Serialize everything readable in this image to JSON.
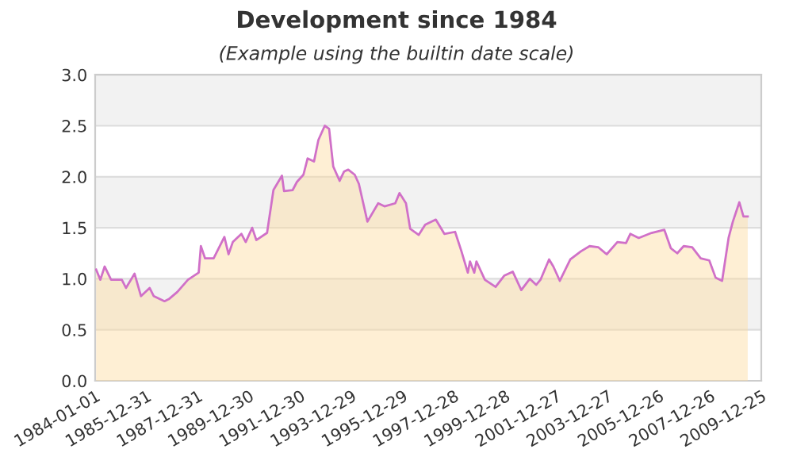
{
  "chart_data": {
    "type": "area",
    "title": "Development since 1984",
    "subtitle": "(Example using the builtin date scale)",
    "x": [
      "1984-01",
      "1984-03",
      "1984-05",
      "1984-08",
      "1985-01",
      "1985-03",
      "1985-07",
      "1985-10",
      "1986-02",
      "1986-04",
      "1986-09",
      "1986-11",
      "1987-03",
      "1987-08",
      "1988-01",
      "1988-02",
      "1988-04",
      "1988-08",
      "1989-01",
      "1989-03",
      "1989-05",
      "1989-09",
      "1989-11",
      "1990-02",
      "1990-04",
      "1990-09",
      "1990-12",
      "1991-04",
      "1991-05",
      "1991-09",
      "1991-11",
      "1992-02",
      "1992-04",
      "1992-07",
      "1992-09",
      "1992-12",
      "1993-02",
      "1993-04",
      "1993-07",
      "1993-09",
      "1993-11",
      "1994-02",
      "1994-04",
      "1994-08",
      "1995-01",
      "1995-04",
      "1995-09",
      "1995-11",
      "1996-02",
      "1996-04",
      "1996-08",
      "1996-11",
      "1997-04",
      "1997-08",
      "1998-01",
      "1998-04",
      "1998-07",
      "1998-08",
      "1998-10",
      "1998-11",
      "1999-03",
      "1999-08",
      "1999-12",
      "2000-04",
      "2000-08",
      "2000-12",
      "2001-03",
      "2001-05",
      "2001-09",
      "2001-11",
      "2002-02",
      "2002-07",
      "2002-12",
      "2003-04",
      "2003-08",
      "2003-12",
      "2004-05",
      "2004-09",
      "2004-11",
      "2005-03",
      "2005-09",
      "2006-03",
      "2006-06",
      "2006-09",
      "2006-12",
      "2007-04",
      "2007-08",
      "2007-12",
      "2008-03",
      "2008-06",
      "2008-09",
      "2008-11",
      "2009-02",
      "2009-04",
      "2009-06"
    ],
    "series": [
      {
        "color": "#fcdca0",
        "values": [
          1.09,
          0.99,
          1.12,
          0.99,
          0.99,
          0.91,
          1.05,
          0.83,
          0.91,
          0.83,
          0.78,
          0.8,
          0.87,
          0.99,
          1.06,
          1.32,
          1.2,
          1.2,
          1.41,
          1.24,
          1.36,
          1.44,
          1.36,
          1.5,
          1.38,
          1.45,
          1.87,
          2.01,
          1.86,
          1.87,
          1.95,
          2.02,
          2.18,
          2.15,
          2.36,
          2.5,
          2.47,
          2.1,
          1.96,
          2.05,
          2.07,
          2.02,
          1.93,
          1.56,
          1.74,
          1.71,
          1.74,
          1.84,
          1.74,
          1.49,
          1.43,
          1.53,
          1.58,
          1.44,
          1.46,
          1.27,
          1.06,
          1.17,
          1.06,
          1.17,
          0.99,
          0.92,
          1.03,
          1.07,
          0.89,
          1.0,
          0.94,
          0.99,
          1.19,
          1.12,
          0.98,
          1.19,
          1.27,
          1.32,
          1.31,
          1.24,
          1.36,
          1.35,
          1.44,
          1.4,
          1.45,
          1.48,
          1.3,
          1.25,
          1.32,
          1.31,
          1.2,
          1.18,
          1.01,
          0.98,
          1.4,
          1.56,
          1.75,
          1.61,
          1.61
        ]
      },
      {
        "type": "line",
        "color": "#d070c8",
        "values": [
          1.09,
          0.99,
          1.12,
          0.99,
          0.99,
          0.91,
          1.05,
          0.83,
          0.91,
          0.83,
          0.78,
          0.8,
          0.87,
          0.99,
          1.06,
          1.32,
          1.2,
          1.2,
          1.41,
          1.24,
          1.36,
          1.44,
          1.36,
          1.5,
          1.38,
          1.45,
          1.87,
          2.01,
          1.86,
          1.87,
          1.95,
          2.02,
          2.18,
          2.15,
          2.36,
          2.5,
          2.47,
          2.1,
          1.96,
          2.05,
          2.07,
          2.02,
          1.93,
          1.56,
          1.74,
          1.71,
          1.74,
          1.84,
          1.74,
          1.49,
          1.43,
          1.53,
          1.58,
          1.44,
          1.46,
          1.27,
          1.06,
          1.17,
          1.06,
          1.17,
          0.99,
          0.92,
          1.03,
          1.07,
          0.89,
          1.0,
          0.94,
          0.99,
          1.19,
          1.12,
          0.98,
          1.19,
          1.27,
          1.32,
          1.31,
          1.24,
          1.36,
          1.35,
          1.44,
          1.4,
          1.45,
          1.48,
          1.3,
          1.25,
          1.32,
          1.31,
          1.2,
          1.18,
          1.01,
          0.98,
          1.4,
          1.56,
          1.75,
          1.61,
          1.61
        ]
      }
    ],
    "xlim": [
      "1984-01-01",
      "2009-12-25"
    ],
    "xticks": [
      "1984-01-01",
      "1985-12-31",
      "1987-12-31",
      "1989-12-30",
      "1991-12-30",
      "1993-12-29",
      "1995-12-29",
      "1997-12-28",
      "1999-12-28",
      "2001-12-27",
      "2003-12-27",
      "2005-12-26",
      "2007-12-26",
      "2009-12-25"
    ],
    "ylim": [
      0,
      3
    ],
    "yticks": [
      {
        "value": 0,
        "label": "0.0"
      },
      {
        "value": 0.5,
        "label": "0.5"
      },
      {
        "value": 1,
        "label": "1.0"
      },
      {
        "value": 1.5,
        "label": "1.5"
      },
      {
        "value": 2,
        "label": "2.0"
      },
      {
        "value": 2.5,
        "label": "2.5"
      },
      {
        "value": 3,
        "label": "3.0"
      }
    ],
    "grid": "y",
    "legend": false
  }
}
